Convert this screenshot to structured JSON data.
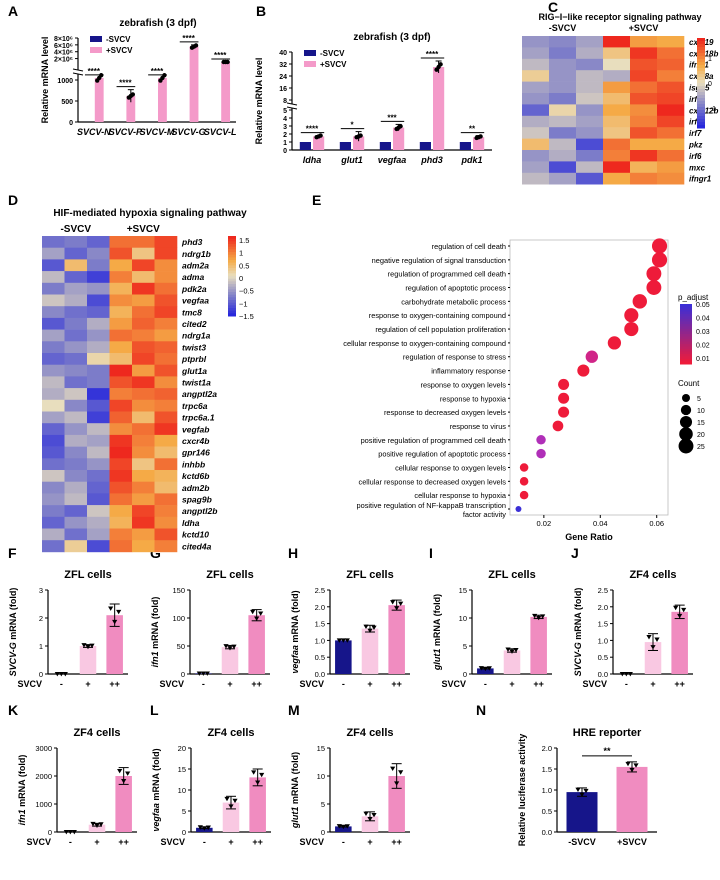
{
  "colors": {
    "neg": "#16158a",
    "pos": "#f49ac9",
    "mid": "#f9c8e2",
    "pos2": "#f08cc0",
    "ink": "#000000"
  },
  "chart_data": [
    {
      "panel": "A",
      "type": "bar",
      "title": "zebrafish (3 dpf)",
      "ylabel": "Relative mRNA level",
      "legend": [
        "-SVCV",
        "+SVCV"
      ],
      "categories": [
        "SVCV-N",
        "SVCV-P",
        "SVCV-M",
        "SVCV-G",
        "SVCV-L"
      ],
      "series": [
        {
          "name": "-SVCV",
          "values": [
            1,
            1,
            1,
            1,
            1
          ]
        },
        {
          "name": "+SVCV",
          "values": [
            1050,
            620,
            1050,
            5500000,
            1800
          ]
        }
      ],
      "errors": [
        0,
        150,
        0,
        500000,
        400
      ],
      "significance": [
        "****",
        "****",
        "****",
        "****",
        "****"
      ],
      "yticks": [
        "0",
        "500",
        "1000",
        "2×10⁶",
        "4×10⁶",
        "6×10⁶",
        "8×10⁶"
      ],
      "yscale": "broken"
    },
    {
      "panel": "B",
      "type": "bar",
      "title": "zebrafish (3 dpf)",
      "ylabel": "Relative mRNA level",
      "legend": [
        "-SVCV",
        "+SVCV"
      ],
      "categories": [
        "ldha",
        "glut1",
        "vegfaa",
        "phd3",
        "pdk1"
      ],
      "series": [
        {
          "name": "-SVCV",
          "values": [
            1,
            1,
            1,
            1,
            1
          ]
        },
        {
          "name": "+SVCV",
          "values": [
            1.7,
            1.7,
            2.8,
            30,
            1.6
          ]
        }
      ],
      "errors": [
        0.1,
        0.6,
        0.4,
        4,
        0.2
      ],
      "significance": [
        "****",
        "*",
        "***",
        "****",
        "**"
      ],
      "yticks": [
        "0",
        "1",
        "2",
        "3",
        "4",
        "5",
        "8",
        "16",
        "24",
        "32",
        "40"
      ],
      "yscale": "broken"
    },
    {
      "panel": "C",
      "type": "heatmap",
      "title": "RIG−I−like receptor signaling pathway",
      "columns": [
        "-SVCV",
        "+SVCV"
      ],
      "rows": [
        "cxcl19",
        "cxcl18b",
        "ifnφ1",
        "cxcl8a",
        "isg15",
        "irf3",
        "cxcl12b",
        "irf9",
        "irf7",
        "pkz",
        "irf6",
        "mxc",
        "ifngr1"
      ],
      "values": [
        [
          -0.6,
          -0.7,
          -0.5,
          1.6,
          0.7,
          0.6
        ],
        [
          -0.5,
          -0.8,
          -0.4,
          0.3,
          1.4,
          1.0
        ],
        [
          -0.3,
          -0.6,
          -0.7,
          0.0,
          1.2,
          1.1
        ],
        [
          0.2,
          -0.6,
          -0.3,
          -0.4,
          1.3,
          0.9
        ],
        [
          -0.5,
          -0.6,
          -0.3,
          0.7,
          1.0,
          1.2
        ],
        [
          -0.6,
          -0.8,
          -0.2,
          0.4,
          1.2,
          1.3
        ],
        [
          -1.0,
          0.1,
          -0.6,
          0.6,
          0.8,
          1.5
        ],
        [
          -0.4,
          -0.3,
          -0.5,
          0.4,
          0.9,
          1.3
        ],
        [
          -0.2,
          -0.8,
          -0.6,
          0.3,
          1.2,
          1.0
        ],
        [
          0.4,
          -0.3,
          -1.2,
          1.0,
          0.6,
          0.6
        ],
        [
          -0.6,
          -0.4,
          -0.8,
          0.9,
          1.4,
          1.0
        ],
        [
          -0.5,
          -1.2,
          -0.3,
          1.5,
          0.5,
          0.7
        ],
        [
          -0.3,
          -0.5,
          -1.1,
          0.6,
          0.9,
          0.8
        ]
      ],
      "colorbar_ticks": [
        "1",
        "0",
        "−1"
      ]
    },
    {
      "panel": "D",
      "type": "heatmap",
      "title": "HIF-mediated hypoxia signaling pathway",
      "columns": [
        "-SVCV",
        "+SVCV"
      ],
      "rows": [
        "phd3",
        "ndrg1b",
        "adm2a",
        "adma",
        "pdk2a",
        "vegfaa",
        "tmc8",
        "cited2",
        "ndrg1a",
        "twist3",
        "ptprbl",
        "glut1a",
        "twist1a",
        "angptl2a",
        "trpc6a",
        "trpc6a.1",
        "vegfab",
        "cxcr4b",
        "gpr146",
        "inhbb",
        "kctd6b",
        "adm2b",
        "spag9b",
        "angptl2b",
        "ldha",
        "kctd10",
        "cited4a"
      ],
      "values": [
        [
          -0.9,
          -0.8,
          -1.0,
          1.0,
          1.0,
          1.3
        ],
        [
          -0.5,
          -1.0,
          -0.7,
          1.2,
          0.3,
          1.3
        ],
        [
          -1.1,
          0.4,
          -0.8,
          0.6,
          1.3,
          0.8
        ],
        [
          -0.3,
          -1.0,
          -1.3,
          0.9,
          0.4,
          0.8
        ],
        [
          -0.8,
          -0.5,
          -0.6,
          0.5,
          1.4,
          1.0
        ],
        [
          -0.2,
          -0.4,
          -1.2,
          0.8,
          0.7,
          1.2
        ],
        [
          -0.7,
          -0.9,
          -1.0,
          0.5,
          1.0,
          1.3
        ],
        [
          -1.1,
          -0.8,
          -0.4,
          0.7,
          1.1,
          0.9
        ],
        [
          -0.5,
          -0.9,
          -0.6,
          1.0,
          0.9,
          0.7
        ],
        [
          -0.8,
          -0.6,
          -0.4,
          0.6,
          1.2,
          1.1
        ],
        [
          -1.0,
          -0.9,
          0.1,
          0.4,
          1.3,
          1.0
        ],
        [
          -0.6,
          -0.7,
          -0.8,
          1.5,
          0.7,
          1.2
        ],
        [
          -0.3,
          -0.9,
          -0.8,
          1.2,
          1.4,
          0.8
        ],
        [
          -0.4,
          -0.2,
          -1.4,
          0.9,
          1.0,
          1.1
        ],
        [
          0.0,
          -0.7,
          -1.1,
          1.3,
          0.8,
          0.9
        ],
        [
          -0.5,
          -0.3,
          -1.3,
          1.1,
          0.4,
          1.2
        ],
        [
          -1.0,
          -0.6,
          -0.3,
          0.8,
          1.0,
          1.4
        ],
        [
          -1.2,
          -0.4,
          -0.5,
          1.4,
          0.9,
          0.6
        ],
        [
          -1.1,
          -0.7,
          -0.3,
          1.5,
          0.8,
          0.4
        ],
        [
          -0.9,
          -0.8,
          -0.6,
          1.3,
          0.3,
          1.0
        ],
        [
          -0.2,
          -0.7,
          -0.9,
          1.4,
          0.6,
          0.5
        ],
        [
          -0.7,
          -0.4,
          -1.0,
          1.2,
          0.9,
          0.4
        ],
        [
          -0.6,
          -0.3,
          -1.1,
          1.0,
          0.7,
          1.0
        ],
        [
          -0.8,
          -1.0,
          -0.2,
          0.6,
          1.3,
          0.9
        ],
        [
          -1.0,
          -0.6,
          -0.4,
          0.5,
          1.4,
          0.8
        ],
        [
          -0.4,
          -0.9,
          -0.5,
          0.9,
          0.7,
          1.2
        ],
        [
          -0.9,
          0.2,
          -1.2,
          1.0,
          0.6,
          0.9
        ]
      ],
      "colorbar_ticks": [
        "1.5",
        "1",
        "0.5",
        "0",
        "−0.5",
        "−1",
        "−1.5"
      ]
    },
    {
      "panel": "E",
      "type": "scatter",
      "xlabel": "Gene Ratio",
      "terms": [
        "regulation of cell death",
        "negative regulation of signal transduction",
        "regulation of programmed cell death",
        "regulation of apoptotic process",
        "carbohydrate metabolic process",
        "response to oxygen-containing compound",
        "regulation of cell population proliferation",
        "cellular response to oxygen-containing compound",
        "regulation of response to stress",
        "inflammatory response",
        "response to oxygen levels",
        "response to hypoxia",
        "response to decreased oxygen levels",
        "response to virus",
        "positive regulation of programmed cell death",
        "positive regulation of apoptotic process",
        "cellular response to oxygen levels",
        "cellular response to decreased oxygen levels",
        "cellular response to hypoxia",
        "positive regulation of NF-kappaB transcription factor activity"
      ],
      "gene_ratio": [
        0.061,
        0.061,
        0.059,
        0.059,
        0.054,
        0.051,
        0.051,
        0.045,
        0.037,
        0.034,
        0.027,
        0.027,
        0.027,
        0.025,
        0.019,
        0.019,
        0.013,
        0.013,
        0.013,
        0.011
      ],
      "count": [
        26,
        26,
        25,
        25,
        23,
        22,
        22,
        19,
        16,
        15,
        12,
        12,
        12,
        11,
        8,
        8,
        6,
        6,
        6,
        2
      ],
      "p_adjust": [
        0.001,
        0.001,
        0.001,
        0.001,
        0.001,
        0.001,
        0.001,
        0.002,
        0.025,
        0.005,
        0.002,
        0.002,
        0.002,
        0.002,
        0.032,
        0.032,
        0.003,
        0.003,
        0.003,
        0.052
      ],
      "xticks": [
        "0.02",
        "0.04",
        "0.06"
      ],
      "xlim": [
        0.008,
        0.064
      ],
      "legend_p_title": "p_adjust",
      "legend_p_ticks": [
        "0.05",
        "0.04",
        "0.03",
        "0.02",
        "0.01"
      ],
      "legend_count_title": "Count",
      "legend_count_values": [
        "5",
        "10",
        "15",
        "20",
        "25"
      ]
    },
    {
      "panel": "F",
      "type": "bar",
      "title": "ZFL cells",
      "ylabel": "SVCV-G mRNA (fold)",
      "xlabel": "SVCV",
      "categories": [
        "-",
        "+",
        "++"
      ],
      "values": [
        0,
        1,
        2.1
      ],
      "errors": [
        0,
        0.05,
        0.4
      ],
      "ylim": [
        0,
        3
      ],
      "yticks": [
        0,
        1,
        2,
        3
      ]
    },
    {
      "panel": "G",
      "type": "bar",
      "title": "ZFL cells",
      "ylabel": "ifn1 mRNA (fold)",
      "xlabel": "SVCV",
      "categories": [
        "-",
        "+",
        "++"
      ],
      "values": [
        1,
        48,
        105
      ],
      "errors": [
        0,
        3,
        10
      ],
      "ylim": [
        0,
        150
      ],
      "yticks": [
        0,
        50,
        100,
        150
      ]
    },
    {
      "panel": "H",
      "type": "bar",
      "title": "ZFL cells",
      "ylabel": "vegfaa mRNA (fold)",
      "xlabel": "SVCV",
      "categories": [
        "-",
        "+",
        "++"
      ],
      "values": [
        1.0,
        1.35,
        2.05
      ],
      "errors": [
        0,
        0.1,
        0.15
      ],
      "ylim": [
        0,
        2.5
      ],
      "yticks": [
        0.0,
        0.5,
        1.0,
        1.5,
        2.0,
        2.5
      ]
    },
    {
      "panel": "I",
      "type": "bar",
      "title": "ZFL cells",
      "ylabel": "glut1 mRNA (fold)",
      "xlabel": "SVCV",
      "categories": [
        "-",
        "+",
        "++"
      ],
      "values": [
        1,
        4.2,
        10.2
      ],
      "errors": [
        0.1,
        0.3,
        0.3
      ],
      "ylim": [
        0,
        15
      ],
      "yticks": [
        0,
        5,
        10,
        15
      ]
    },
    {
      "panel": "J",
      "type": "bar",
      "title": "ZF4 cells",
      "ylabel": "SVCV-G mRNA (fold)",
      "xlabel": "SVCV",
      "categories": [
        "-",
        "+",
        "++"
      ],
      "values": [
        0,
        0.95,
        1.85
      ],
      "errors": [
        0,
        0.25,
        0.2
      ],
      "ylim": [
        0,
        2.5
      ],
      "yticks": [
        0.0,
        0.5,
        1.0,
        1.5,
        2.0,
        2.5
      ]
    },
    {
      "panel": "K",
      "type": "bar",
      "title": "ZF4 cells",
      "ylabel": "ifn1 mRNA (fold)",
      "xlabel": "SVCV",
      "categories": [
        "-",
        "+",
        "++"
      ],
      "values": [
        1,
        260,
        2000
      ],
      "errors": [
        0,
        50,
        300
      ],
      "ylim": [
        0,
        3000
      ],
      "yticks": [
        0,
        1000,
        2000,
        3000
      ]
    },
    {
      "panel": "L",
      "type": "bar",
      "title": "ZF4 cells",
      "ylabel": "vegfaa mRNA (fold)",
      "xlabel": "SVCV",
      "categories": [
        "-",
        "+",
        "++"
      ],
      "values": [
        1,
        7,
        13
      ],
      "errors": [
        0.2,
        1.5,
        2
      ],
      "ylim": [
        0,
        20
      ],
      "yticks": [
        0,
        5,
        10,
        15,
        20
      ]
    },
    {
      "panel": "M",
      "type": "bar",
      "title": "ZF4 cells",
      "ylabel": "glut1 mRNA (fold)",
      "xlabel": "SVCV",
      "categories": [
        "-",
        "+",
        "++"
      ],
      "values": [
        1,
        2.8,
        10
      ],
      "errors": [
        0.1,
        0.8,
        2.2
      ],
      "ylim": [
        0,
        15
      ],
      "yticks": [
        0,
        5,
        10,
        15
      ]
    },
    {
      "panel": "N",
      "type": "bar",
      "title": "HRE reporter",
      "ylabel": "Relative luciferase activity",
      "categories": [
        "-SVCV",
        "+SVCV"
      ],
      "values": [
        0.95,
        1.55
      ],
      "errors": [
        0.1,
        0.12
      ],
      "ylim": [
        0,
        2.0
      ],
      "yticks": [
        0.0,
        0.5,
        1.0,
        1.5,
        2.0
      ],
      "significance": "**"
    }
  ]
}
